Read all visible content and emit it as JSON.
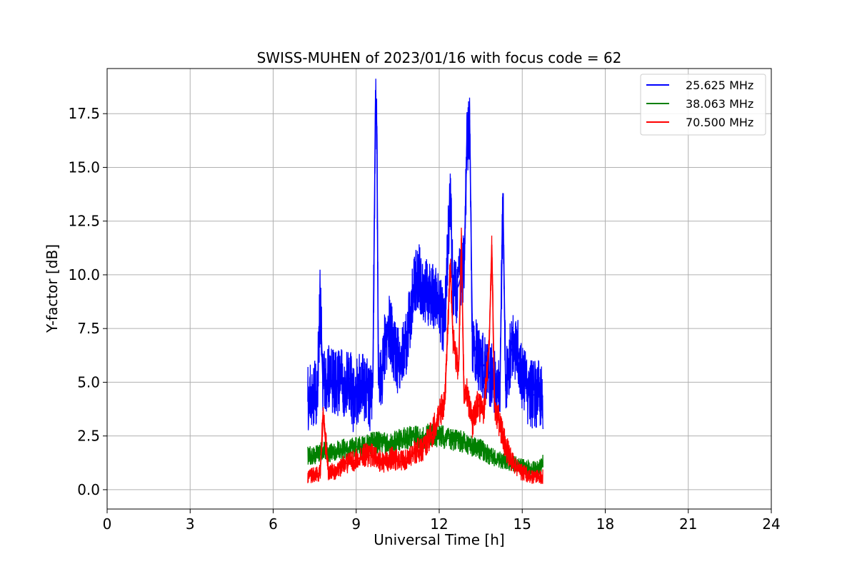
{
  "chart_data": {
    "type": "line",
    "title": "SWISS-MUHEN of 2023/01/16 with focus code = 62",
    "xlabel": "Universal Time [h]",
    "ylabel": "Y-factor [dB]",
    "xlim": [
      0,
      24
    ],
    "ylim": [
      -0.9,
      19.6
    ],
    "xticks": [
      "0",
      "3",
      "6",
      "9",
      "12",
      "15",
      "18",
      "21",
      "24"
    ],
    "yticks": [
      "0.0",
      "2.5",
      "5.0",
      "7.5",
      "10.0",
      "12.5",
      "15.0",
      "17.5"
    ],
    "grid": true,
    "legend_position": "top-right",
    "series": [
      {
        "name": "25.625 MHz",
        "color": "#0000ff",
        "x": [
          7.25,
          7.4,
          7.6,
          7.7,
          7.8,
          8.0,
          8.3,
          8.6,
          8.8,
          8.9,
          9.0,
          9.2,
          9.5,
          9.6,
          9.7,
          9.75,
          9.8,
          9.9,
          10.0,
          10.2,
          10.5,
          10.8,
          11.0,
          11.2,
          11.5,
          11.8,
          12.0,
          12.2,
          12.4,
          12.5,
          12.7,
          12.9,
          13.0,
          13.1,
          13.2,
          13.4,
          13.6,
          13.8,
          14.0,
          14.2,
          14.3,
          14.4,
          14.6,
          14.8,
          15.0,
          15.2,
          15.4,
          15.6,
          15.75
        ],
        "y": [
          4.2,
          4.4,
          4.6,
          9.0,
          4.8,
          5.2,
          4.9,
          5.0,
          5.2,
          4.0,
          4.5,
          5.0,
          4.3,
          4.8,
          18.6,
          16.5,
          5.5,
          5.0,
          6.5,
          7.5,
          6.0,
          6.8,
          8.5,
          10.0,
          9.3,
          9.0,
          8.6,
          7.5,
          14.1,
          9.0,
          9.5,
          10.5,
          16.0,
          17.2,
          7.0,
          6.2,
          5.8,
          5.5,
          5.0,
          5.0,
          13.8,
          4.8,
          6.5,
          6.8,
          5.2,
          4.6,
          4.4,
          4.5,
          4.3
        ]
      },
      {
        "name": "38.063 MHz",
        "color": "#008000",
        "x": [
          7.25,
          7.5,
          7.8,
          8.1,
          8.4,
          8.7,
          9.0,
          9.3,
          9.6,
          9.9,
          10.2,
          10.5,
          10.8,
          11.1,
          11.4,
          11.7,
          12.0,
          12.3,
          12.6,
          12.9,
          13.2,
          13.5,
          13.8,
          14.1,
          14.4,
          14.7,
          15.0,
          15.3,
          15.6,
          15.75
        ],
        "y": [
          1.6,
          1.6,
          1.8,
          1.7,
          1.9,
          1.9,
          2.0,
          2.0,
          2.2,
          2.2,
          2.1,
          2.3,
          2.4,
          2.5,
          2.4,
          2.6,
          2.5,
          2.4,
          2.3,
          2.2,
          2.0,
          1.9,
          1.6,
          1.4,
          1.3,
          1.2,
          1.1,
          1.0,
          1.0,
          1.3
        ]
      },
      {
        "name": "70.500 MHz",
        "color": "#ff0000",
        "x": [
          7.25,
          7.5,
          7.7,
          7.8,
          8.0,
          8.3,
          8.6,
          8.8,
          9.0,
          9.3,
          9.6,
          9.8,
          10.0,
          10.3,
          10.6,
          10.9,
          11.2,
          11.5,
          11.8,
          12.0,
          12.2,
          12.4,
          12.5,
          12.7,
          12.8,
          12.9,
          13.0,
          13.2,
          13.4,
          13.6,
          13.8,
          13.9,
          14.0,
          14.2,
          14.4,
          14.6,
          14.8,
          15.0,
          15.2,
          15.4,
          15.6,
          15.75
        ],
        "y": [
          0.6,
          0.7,
          0.8,
          3.5,
          0.8,
          0.9,
          1.2,
          1.3,
          1.4,
          1.6,
          1.6,
          1.4,
          1.2,
          1.5,
          1.3,
          1.5,
          1.8,
          2.0,
          2.8,
          3.5,
          4.0,
          10.5,
          7.0,
          5.5,
          11.7,
          4.0,
          4.5,
          3.0,
          4.0,
          3.5,
          6.5,
          11.4,
          4.0,
          3.0,
          2.0,
          1.4,
          1.0,
          0.8,
          0.7,
          0.6,
          0.6,
          0.6
        ]
      }
    ]
  }
}
